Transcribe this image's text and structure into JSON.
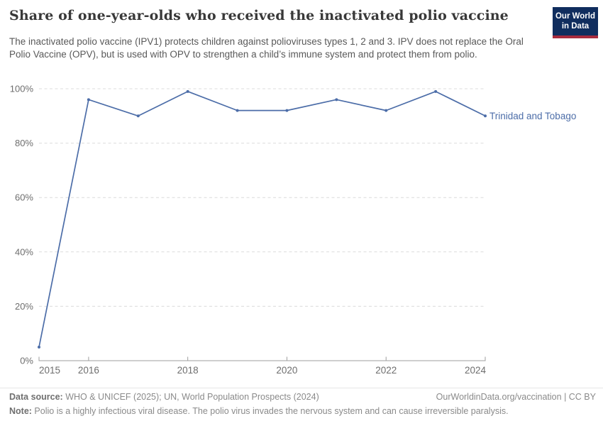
{
  "header": {
    "title": "Share of one-year-olds who received the inactivated polio vaccine",
    "subtitle": "The inactivated polio vaccine (IPV1) protects children against polioviruses types 1, 2 and 3. IPV does not replace the Oral Polio Vaccine (OPV), but is used with OPV to strengthen a child’s immune system and protect them from polio.",
    "logo": {
      "line1": "Our World",
      "line2": "in Data",
      "bg_color": "#102d5e",
      "stripe_color": "#a82b3e",
      "text_color": "#ffffff"
    }
  },
  "chart_data": {
    "type": "line",
    "title": "Share of one-year-olds who received the inactivated polio vaccine",
    "xlabel": "",
    "ylabel": "",
    "x": [
      2015,
      2016,
      2017,
      2018,
      2019,
      2020,
      2021,
      2022,
      2023,
      2024
    ],
    "series": [
      {
        "name": "Trinidad and Tobago",
        "color": "#4c6da8",
        "values": [
          5,
          96,
          90,
          99,
          92,
          92,
          96,
          92,
          99,
          90
        ]
      }
    ],
    "xlim": [
      2015,
      2024
    ],
    "ylim": [
      0,
      100
    ],
    "x_ticks": [
      2015,
      2016,
      2018,
      2020,
      2022,
      2024
    ],
    "y_ticks": [
      0,
      20,
      40,
      60,
      80,
      100
    ],
    "y_tick_suffix": "%",
    "grid": "horizontal-dashed",
    "legend_position": "right-of-line-end",
    "colors": {
      "gridline": "#dcdcdc",
      "axis_line": "#9e9e9e",
      "tick_label": "#6e6e6e"
    }
  },
  "footer": {
    "datasource_label": "Data source:",
    "datasource_text": " WHO & UNICEF (2025); UN, World Population Prospects (2024)",
    "rights_text": "OurWorldinData.org/vaccination | CC BY",
    "note_label": "Note:",
    "note_text": " Polio is a highly infectious viral disease. The polio virus invades the nervous system and can cause irreversible paralysis."
  }
}
